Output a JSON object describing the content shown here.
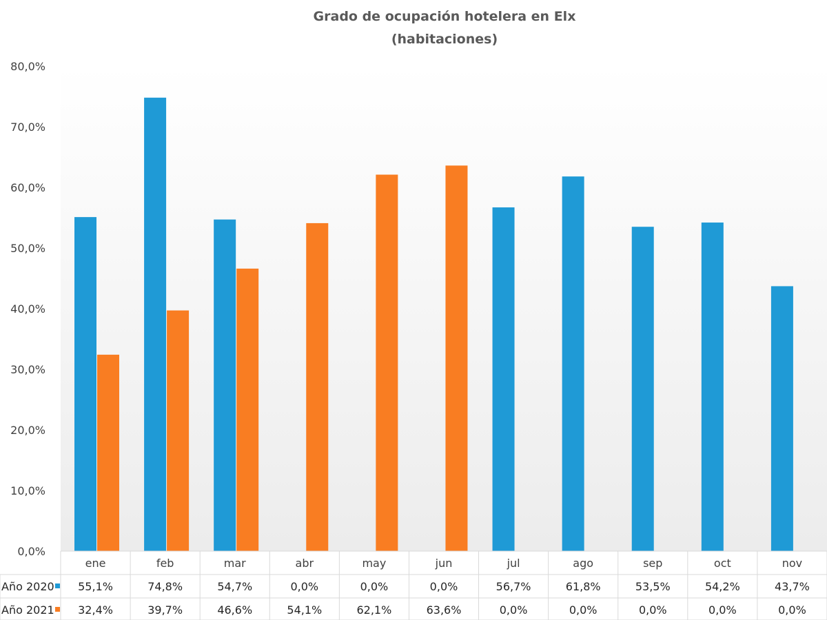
{
  "chart_data": {
    "type": "bar",
    "title": "Grado de ocupación hotelera en Elx",
    "subtitle": "(habitaciones)",
    "xlabel": "",
    "ylabel": "",
    "ylim": [
      0,
      80
    ],
    "y_ticks": [
      "0,0%",
      "10,0%",
      "20,0%",
      "30,0%",
      "40,0%",
      "50,0%",
      "60,0%",
      "70,0%",
      "80,0%"
    ],
    "y_tick_values": [
      0,
      10,
      20,
      30,
      40,
      50,
      60,
      70,
      80
    ],
    "categories": [
      "ene",
      "feb",
      "mar",
      "abr",
      "may",
      "jun",
      "jul",
      "ago",
      "sep",
      "oct",
      "nov"
    ],
    "series": [
      {
        "name": "Año 2020",
        "color": "#1f9ad6",
        "values": [
          55.1,
          74.8,
          54.7,
          0.0,
          0.0,
          0.0,
          56.7,
          61.8,
          53.5,
          54.2,
          43.7
        ],
        "labels": [
          "55,1%",
          "74,8%",
          "54,7%",
          "0,0%",
          "0,0%",
          "0,0%",
          "56,7%",
          "61,8%",
          "53,5%",
          "54,2%",
          "43,7%"
        ]
      },
      {
        "name": "Año 2021",
        "color": "#f97d22",
        "values": [
          32.4,
          39.7,
          46.6,
          54.1,
          62.1,
          63.6,
          0.0,
          0.0,
          0.0,
          0.0,
          0.0
        ],
        "labels": [
          "32,4%",
          "39,7%",
          "46,6%",
          "54,1%",
          "62,1%",
          "63,6%",
          "0,0%",
          "0,0%",
          "0,0%",
          "0,0%",
          "0,0%"
        ]
      }
    ],
    "data_table": true,
    "grid": false
  }
}
